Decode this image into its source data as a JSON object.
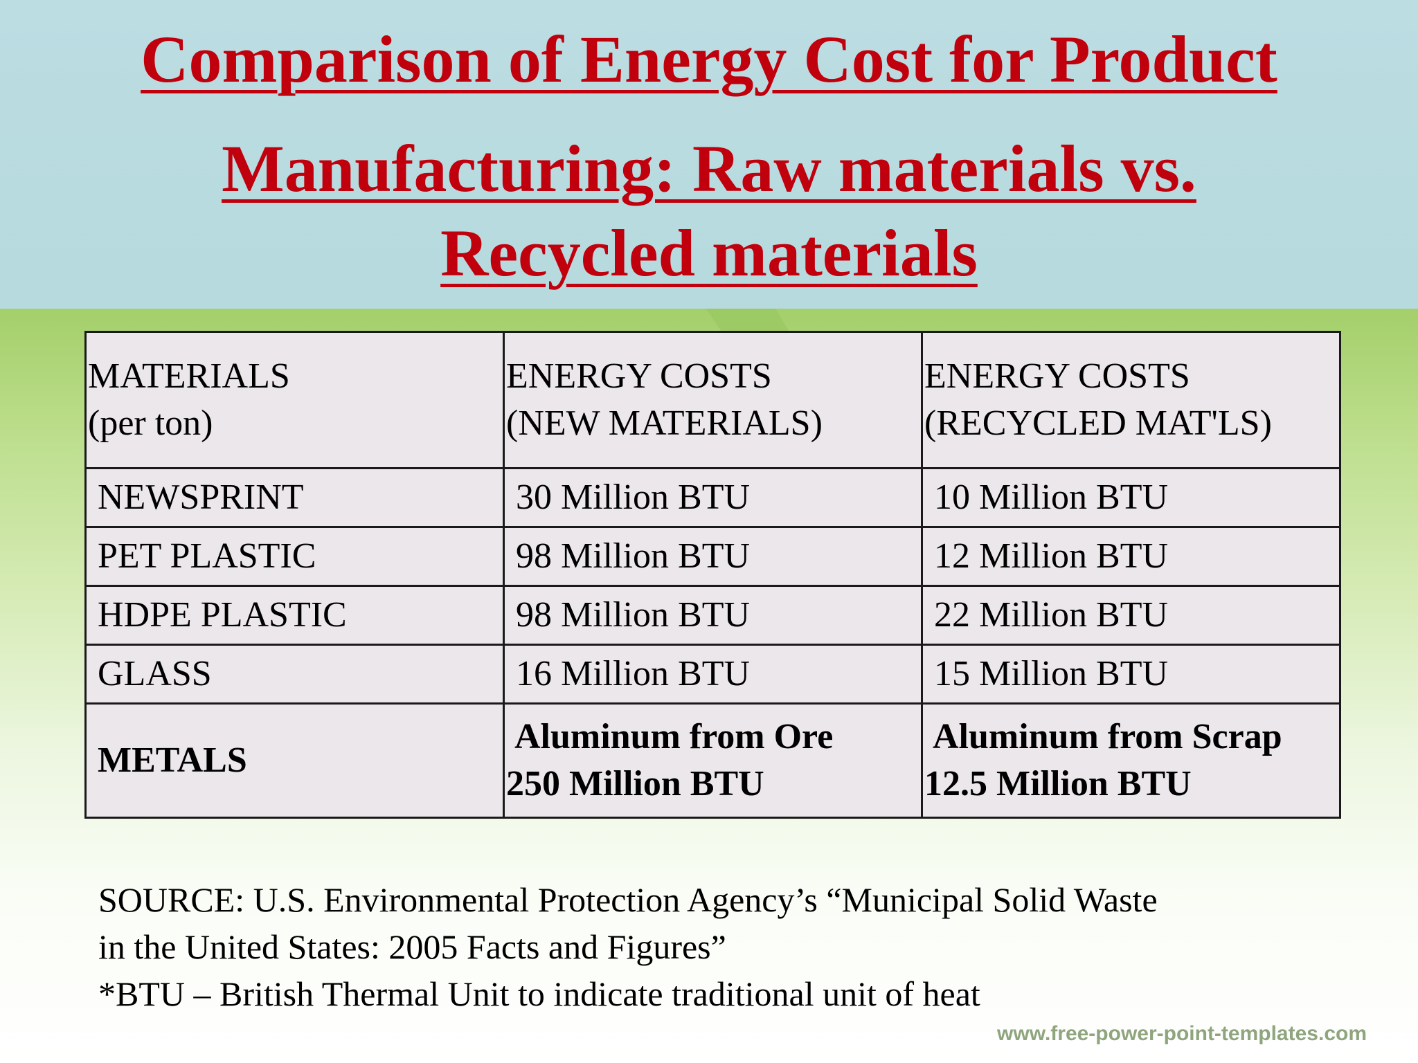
{
  "colors": {
    "title": "#c0000c",
    "title_band": "#bcdde2",
    "green_band": "#a4cf6a",
    "table_bg": "#ebe7ea"
  },
  "title": {
    "line1": "Comparison of Energy Cost for Product",
    "line2": "Manufacturing: Raw materials vs.",
    "line3": "Recycled materials"
  },
  "table": {
    "headers": [
      {
        "line1": "MATERIALS",
        "line2": "(per ton)"
      },
      {
        "line1": "ENERGY COSTS",
        "line2": "(NEW MATERIALS)"
      },
      {
        "line1": "ENERGY COSTS",
        "line2": "(RECYCLED MAT'LS)"
      }
    ],
    "rows": [
      {
        "material": "NEWSPRINT",
        "new": "30 Million BTU",
        "recycled": "10 Million BTU"
      },
      {
        "material": "PET PLASTIC",
        "new": "98 Million BTU",
        "recycled": "12 Million BTU"
      },
      {
        "material": "HDPE PLASTIC",
        "new": "98 Million BTU",
        "recycled": "22 Million BTU"
      },
      {
        "material": "GLASS",
        "new": "16 Million BTU",
        "recycled": "15 Million BTU"
      }
    ],
    "metals": {
      "material": "METALS",
      "new_line1": "Aluminum from Ore",
      "new_line2": "250 Million BTU",
      "recycled_line1": "Aluminum from Scrap",
      "recycled_line2": "12.5 Million BTU"
    }
  },
  "footnote": {
    "line1": "SOURCE:  U.S. Environmental Protection Agency’s “Municipal Solid Waste",
    "line2": "in the United States: 2005 Facts and Figures”",
    "line3": "*BTU – British Thermal Unit to indicate traditional unit of heat"
  },
  "watermark": "www.free-power-point-templates.com",
  "icons": {
    "background": "recycle-arrows-icon"
  }
}
